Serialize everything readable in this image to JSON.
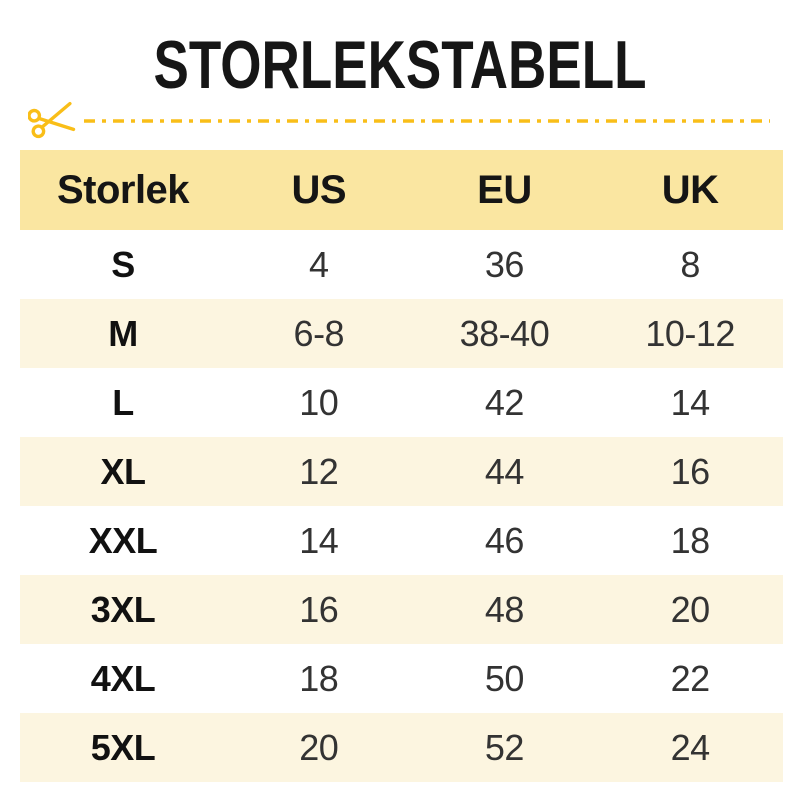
{
  "page": {
    "title": "STORLEKSTABELL"
  },
  "cut_line": {
    "icon": "scissors-icon",
    "style": "dash-dot",
    "color": "#F9BE18"
  },
  "colors": {
    "accent_gold": "#F9BE18",
    "header_bg": "#FAE6A1",
    "row_alt_bg": "#FCF5E0",
    "row_bg": "#FFFFFF",
    "title_text": "#161616",
    "cell_text": "#333333"
  },
  "table": {
    "columns": [
      "Storlek",
      "US",
      "EU",
      "UK"
    ],
    "rows": [
      [
        "S",
        "4",
        "36",
        "8"
      ],
      [
        "M",
        "6-8",
        "38-40",
        "10-12"
      ],
      [
        "L",
        "10",
        "42",
        "14"
      ],
      [
        "XL",
        "12",
        "44",
        "16"
      ],
      [
        "XXL",
        "14",
        "46",
        "18"
      ],
      [
        "3XL",
        "16",
        "48",
        "20"
      ],
      [
        "4XL",
        "18",
        "50",
        "22"
      ],
      [
        "5XL",
        "20",
        "52",
        "24"
      ]
    ]
  }
}
